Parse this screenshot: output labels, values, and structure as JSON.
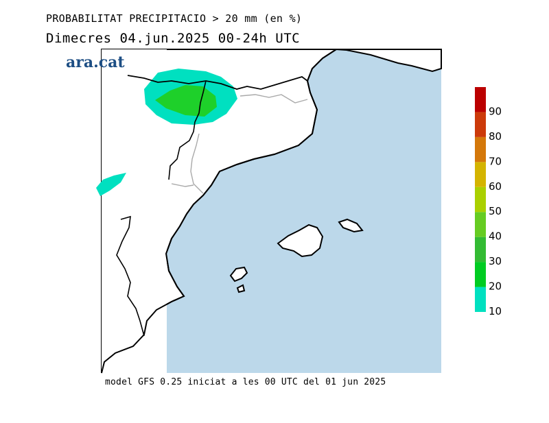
{
  "header": {
    "title": "PROBABILITAT PRECIPITACIO > 20 mm (en %)",
    "subtitle": "Dimecres  04.jun.2025 00-24h UTC"
  },
  "brand": {
    "logo_text": "ara.cat"
  },
  "footer": {
    "model_run": "model GFS 0.25 iniciat a les 00 UTC del 01 jun 2025"
  },
  "colors": {
    "sea": "#bcd8ea",
    "land": "#ffffff",
    "coast": "#000000",
    "border": "#a9a9a9"
  },
  "colorbar": {
    "levels": [
      {
        "label": "10",
        "color": "#00e0c0"
      },
      {
        "label": "20",
        "color": "#00cc22"
      },
      {
        "label": "30",
        "color": "#33bb33"
      },
      {
        "label": "40",
        "color": "#66cc22"
      },
      {
        "label": "50",
        "color": "#aad000"
      },
      {
        "label": "60",
        "color": "#d4b400"
      },
      {
        "label": "70",
        "color": "#d4780a"
      },
      {
        "label": "80",
        "color": "#cc3a0a"
      },
      {
        "label": "90",
        "color": "#bb0000"
      }
    ]
  },
  "precip_areas": [
    {
      "name": "pyrenees-10pct",
      "level": "10"
    },
    {
      "name": "pyrenees-20pct",
      "level": "20"
    },
    {
      "name": "aragon-10pct",
      "level": "10"
    }
  ]
}
